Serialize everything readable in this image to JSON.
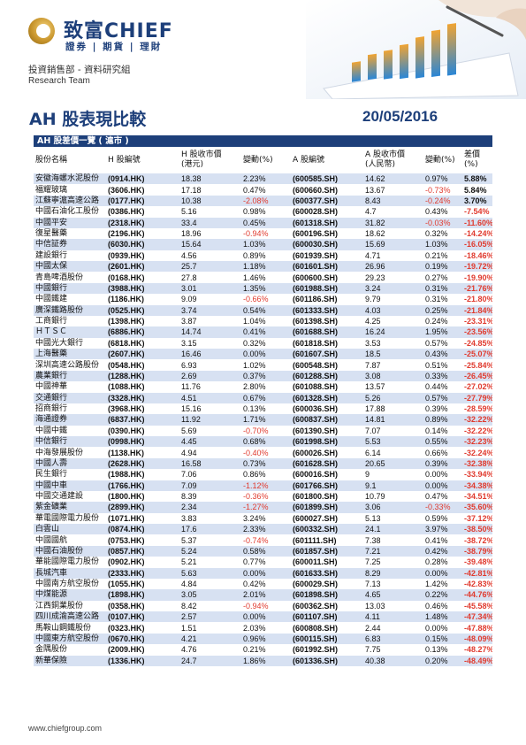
{
  "brand": {
    "name": "致富CHIEF",
    "sub": "證券 | 期貨 | 理財",
    "dept": "投資銷售部 - 資料研究組",
    "team": "Research Team"
  },
  "report": {
    "title": "AH 股表現比較",
    "date": "20/05/2016"
  },
  "table": {
    "bar_label": "AH 股差價一覽 ( 滬市 )",
    "headers": [
      "股份名稱",
      "H 股編號",
      "H 股收市價\n(港元)",
      "變動(%)",
      "A 股編號",
      "A 股收市價\n(人民幣)",
      "變動(%)",
      "差價(%)"
    ],
    "rows": [
      [
        "安徽海螺水泥股份",
        "(0914.HK)",
        "18.38",
        "2.23%",
        "(600585.SH)",
        "14.62",
        "0.97%",
        "5.88%"
      ],
      [
        "福耀玻璃",
        "(3606.HK)",
        "17.18",
        "0.47%",
        "(600660.SH)",
        "13.67",
        "-0.73%",
        "5.84%"
      ],
      [
        "江蘇寧滬高速公路",
        "(0177.HK)",
        "10.38",
        "-2.08%",
        "(600377.SH)",
        "8.43",
        "-0.24%",
        "3.70%"
      ],
      [
        "中國石油化工股份",
        "(0386.HK)",
        "5.16",
        "0.98%",
        "(600028.SH)",
        "4.7",
        "0.43%",
        "-7.54%"
      ],
      [
        "中國平安",
        "(2318.HK)",
        "33.4",
        "0.45%",
        "(601318.SH)",
        "31.82",
        "-0.03%",
        "-11.60%"
      ],
      [
        "復星醫藥",
        "(2196.HK)",
        "18.96",
        "-0.94%",
        "(600196.SH)",
        "18.62",
        "0.32%",
        "-14.24%"
      ],
      [
        "中信証券",
        "(6030.HK)",
        "15.64",
        "1.03%",
        "(600030.SH)",
        "15.69",
        "1.03%",
        "-16.05%"
      ],
      [
        "建設銀行",
        "(0939.HK)",
        "4.56",
        "0.89%",
        "(601939.SH)",
        "4.71",
        "0.21%",
        "-18.46%"
      ],
      [
        "中國太保",
        "(2601.HK)",
        "25.7",
        "1.18%",
        "(601601.SH)",
        "26.96",
        "0.19%",
        "-19.72%"
      ],
      [
        "青島啤酒股份",
        "(0168.HK)",
        "27.8",
        "1.46%",
        "(600600.SH)",
        "29.23",
        "0.27%",
        "-19.90%"
      ],
      [
        "中國銀行",
        "(3988.HK)",
        "3.01",
        "1.35%",
        "(601988.SH)",
        "3.24",
        "0.31%",
        "-21.76%"
      ],
      [
        "中國鐵建",
        "(1186.HK)",
        "9.09",
        "-0.66%",
        "(601186.SH)",
        "9.79",
        "0.31%",
        "-21.80%"
      ],
      [
        "廣深鐵路股份",
        "(0525.HK)",
        "3.74",
        "0.54%",
        "(601333.SH)",
        "4.03",
        "0.25%",
        "-21.84%"
      ],
      [
        "工商銀行",
        "(1398.HK)",
        "3.87",
        "1.04%",
        "(601398.SH)",
        "4.25",
        "0.24%",
        "-23.31%"
      ],
      [
        "ＨＴＳＣ",
        "(6886.HK)",
        "14.74",
        "0.41%",
        "(601688.SH)",
        "16.24",
        "1.95%",
        "-23.56%"
      ],
      [
        "中國光大銀行",
        "(6818.HK)",
        "3.15",
        "0.32%",
        "(601818.SH)",
        "3.53",
        "0.57%",
        "-24.85%"
      ],
      [
        "上海醫藥",
        "(2607.HK)",
        "16.46",
        "0.00%",
        "(601607.SH)",
        "18.5",
        "0.43%",
        "-25.07%"
      ],
      [
        "深圳高速公路股份",
        "(0548.HK)",
        "6.93",
        "1.02%",
        "(600548.SH)",
        "7.87",
        "0.51%",
        "-25.84%"
      ],
      [
        "農業銀行",
        "(1288.HK)",
        "2.69",
        "0.37%",
        "(601288.SH)",
        "3.08",
        "0.33%",
        "-26.45%"
      ],
      [
        "中國神華",
        "(1088.HK)",
        "11.76",
        "2.80%",
        "(601088.SH)",
        "13.57",
        "0.44%",
        "-27.02%"
      ],
      [
        "交通銀行",
        "(3328.HK)",
        "4.51",
        "0.67%",
        "(601328.SH)",
        "5.26",
        "0.57%",
        "-27.79%"
      ],
      [
        "招商銀行",
        "(3968.HK)",
        "15.16",
        "0.13%",
        "(600036.SH)",
        "17.88",
        "0.39%",
        "-28.59%"
      ],
      [
        "海通證券",
        "(6837.HK)",
        "11.92",
        "1.71%",
        "(600837.SH)",
        "14.81",
        "0.89%",
        "-32.22%"
      ],
      [
        "中國中鐵",
        "(0390.HK)",
        "5.69",
        "-0.70%",
        "(601390.SH)",
        "7.07",
        "0.14%",
        "-32.22%"
      ],
      [
        "中信銀行",
        "(0998.HK)",
        "4.45",
        "0.68%",
        "(601998.SH)",
        "5.53",
        "0.55%",
        "-32.23%"
      ],
      [
        "中海發展股份",
        "(1138.HK)",
        "4.94",
        "-0.40%",
        "(600026.SH)",
        "6.14",
        "0.66%",
        "-32.24%"
      ],
      [
        "中國人壽",
        "(2628.HK)",
        "16.58",
        "0.73%",
        "(601628.SH)",
        "20.65",
        "0.39%",
        "-32.38%"
      ],
      [
        "民生銀行",
        "(1988.HK)",
        "7.06",
        "0.86%",
        "(600016.SH)",
        "9",
        "0.00%",
        "-33.94%"
      ],
      [
        "中國中車",
        "(1766.HK)",
        "7.09",
        "-1.12%",
        "(601766.SH)",
        "9.1",
        "0.00%",
        "-34.38%"
      ],
      [
        "中國交通建設",
        "(1800.HK)",
        "8.39",
        "-0.36%",
        "(601800.SH)",
        "10.79",
        "0.47%",
        "-34.51%"
      ],
      [
        "紫金礦業",
        "(2899.HK)",
        "2.34",
        "-1.27%",
        "(601899.SH)",
        "3.06",
        "-0.33%",
        "-35.60%"
      ],
      [
        "華電國際電力股份",
        "(1071.HK)",
        "3.83",
        "3.24%",
        "(600027.SH)",
        "5.13",
        "0.59%",
        "-37.12%"
      ],
      [
        "白雲山",
        "(0874.HK)",
        "17.6",
        "2.33%",
        "(600332.SH)",
        "24.1",
        "3.97%",
        "-38.50%"
      ],
      [
        "中國國航",
        "(0753.HK)",
        "5.37",
        "-0.74%",
        "(601111.SH)",
        "7.38",
        "0.41%",
        "-38.72%"
      ],
      [
        "中國石油股份",
        "(0857.HK)",
        "5.24",
        "0.58%",
        "(601857.SH)",
        "7.21",
        "0.42%",
        "-38.79%"
      ],
      [
        "華能國際電力股份",
        "(0902.HK)",
        "5.21",
        "0.77%",
        "(600011.SH)",
        "7.25",
        "0.28%",
        "-39.48%"
      ],
      [
        "長城汽車",
        "(2333.HK)",
        "5.63",
        "0.00%",
        "(601633.SH)",
        "8.29",
        "0.00%",
        "-42.81%"
      ],
      [
        "中國南方航空股份",
        "(1055.HK)",
        "4.84",
        "0.42%",
        "(600029.SH)",
        "7.13",
        "1.42%",
        "-42.83%"
      ],
      [
        "中煤能源",
        "(1898.HK)",
        "3.05",
        "2.01%",
        "(601898.SH)",
        "4.65",
        "0.22%",
        "-44.76%"
      ],
      [
        "江西銅業股份",
        "(0358.HK)",
        "8.42",
        "-0.94%",
        "(600362.SH)",
        "13.03",
        "0.46%",
        "-45.58%"
      ],
      [
        "四川成渝高速公路",
        "(0107.HK)",
        "2.57",
        "0.00%",
        "(601107.SH)",
        "4.11",
        "1.48%",
        "-47.34%"
      ],
      [
        "馬鞍山鋼鐵股份",
        "(0323.HK)",
        "1.51",
        "2.03%",
        "(600808.SH)",
        "2.44",
        "0.00%",
        "-47.88%"
      ],
      [
        "中國東方航空股份",
        "(0670.HK)",
        "4.21",
        "0.96%",
        "(600115.SH)",
        "6.83",
        "0.15%",
        "-48.09%"
      ],
      [
        "金隅股份",
        "(2009.HK)",
        "4.76",
        "0.21%",
        "(601992.SH)",
        "7.75",
        "0.13%",
        "-48.27%"
      ],
      [
        "新華保險",
        "(1336.HK)",
        "24.7",
        "1.86%",
        "(601336.SH)",
        "40.38",
        "0.20%",
        "-48.49%"
      ]
    ]
  },
  "footer": {
    "url": "www.chiefgroup.com"
  },
  "colors": {
    "brand_blue": "#1d3f7a",
    "row_stripe": "#d7e1f2",
    "negative": "#e03a2e",
    "logo_gold": "#c8952c"
  }
}
